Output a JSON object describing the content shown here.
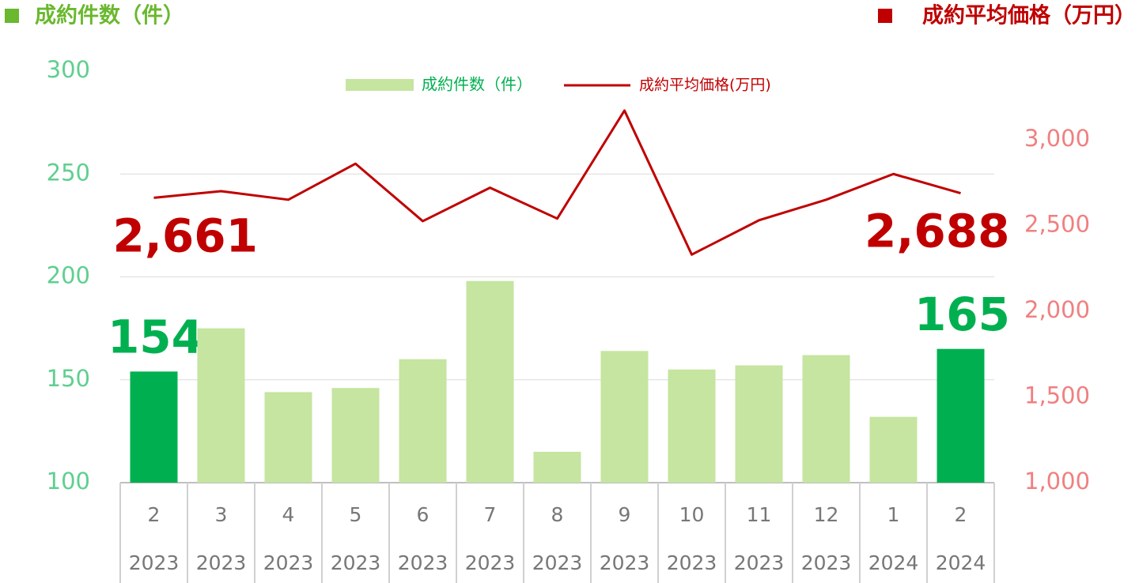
{
  "chart_data": {
    "type": "bar-line",
    "y_label": "成約件数（件）",
    "y_label_color": "#6ab82e",
    "y2_label": "成約平均価格（万円）",
    "y2_label_color": "#c00000",
    "categories": [
      "2",
      "3",
      "4",
      "5",
      "6",
      "7",
      "8",
      "9",
      "10",
      "11",
      "12",
      "1",
      "2"
    ],
    "years": [
      "2023",
      "2023",
      "2023",
      "2023",
      "2023",
      "2023",
      "2023",
      "2023",
      "2023",
      "2023",
      "2023",
      "2024",
      "2024"
    ],
    "series": [
      {
        "name": "成約件数（件）",
        "type": "bar",
        "color": "#c5e5a0",
        "colors": [
          "#00b050",
          "#c5e5a0",
          "#c5e5a0",
          "#c5e5a0",
          "#c5e5a0",
          "#c5e5a0",
          "#c5e5a0",
          "#c5e5a0",
          "#c5e5a0",
          "#c5e5a0",
          "#c5e5a0",
          "#c5e5a0",
          "#00b050"
        ],
        "label_color": "#00b050",
        "values": [
          154,
          175,
          144,
          146,
          160,
          198,
          115,
          164,
          155,
          157,
          162,
          132,
          165
        ],
        "value_labels": [
          "154",
          null,
          null,
          null,
          null,
          null,
          null,
          null,
          null,
          null,
          null,
          null,
          "165"
        ]
      },
      {
        "name": "成約平均価格(万円)",
        "type": "line",
        "axis": "y2",
        "color": "#c00000",
        "label_color": "#c00000",
        "values": [
          2661,
          2700,
          2650,
          2860,
          2525,
          2720,
          2540,
          3170,
          2330,
          2530,
          2650,
          2800,
          2688
        ],
        "value_labels": [
          "2,661",
          null,
          null,
          null,
          null,
          null,
          null,
          null,
          null,
          null,
          null,
          null,
          "2,688"
        ]
      }
    ],
    "ylim": [
      100,
      300
    ],
    "yticks": [
      100,
      150,
      200,
      250,
      300
    ],
    "ytick_color": "#5fcf8f",
    "y2lim": [
      1000,
      3400
    ],
    "y2ticks": [
      {
        "value": 1000,
        "label": "1,000"
      },
      {
        "value": 1500,
        "label": "1,500"
      },
      {
        "value": 2000,
        "label": "2,000"
      },
      {
        "value": 2500,
        "label": "2,500"
      },
      {
        "value": 3000,
        "label": "3,000"
      }
    ],
    "y2tick_color": "#f08080",
    "grid": true
  }
}
